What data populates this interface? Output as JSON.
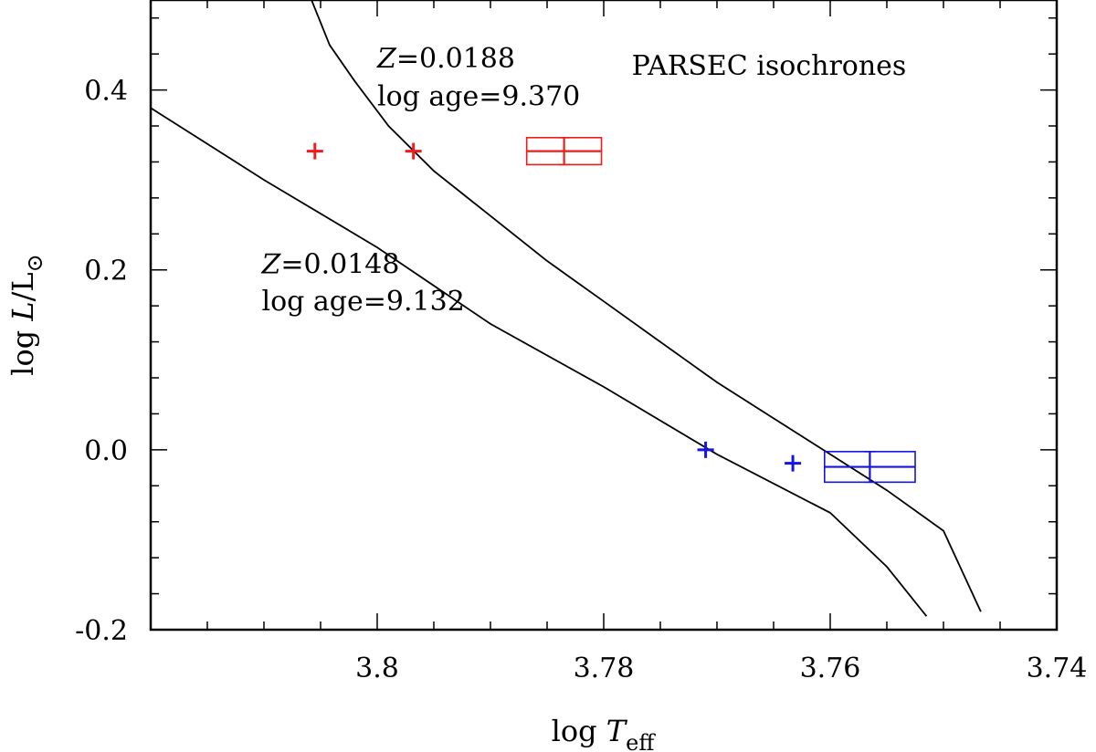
{
  "chart_data": {
    "type": "line",
    "title": "PARSEC isochrones",
    "xlabel": {
      "main": "log ",
      "var": "T",
      "sub": "eff"
    },
    "ylabel": {
      "main": "log ",
      "var": "L",
      "rest": "/L",
      "sub": "⊙"
    },
    "xlim": [
      3.82,
      3.74
    ],
    "ylim": [
      -0.2,
      0.5
    ],
    "x_reversed": true,
    "x_ticks": [
      {
        "value": 3.8,
        "label": "3.8"
      },
      {
        "value": 3.78,
        "label": "3.78"
      },
      {
        "value": 3.76,
        "label": "3.76"
      },
      {
        "value": 3.74,
        "label": "3.74"
      }
    ],
    "x_minor_step": 0.005,
    "y_ticks": [
      {
        "value": 0.4,
        "label": "0.4"
      },
      {
        "value": 0.2,
        "label": "0.2"
      },
      {
        "value": 0.0,
        "label": "0.0"
      },
      {
        "value": -0.2,
        "label": "-0.2"
      }
    ],
    "y_minor_step": 0.04,
    "series": [
      {
        "name": "Z=0.0188 isochrone",
        "color": "#000000",
        "x": [
          3.8058,
          3.8042,
          3.802,
          3.799,
          3.795,
          3.79,
          3.785,
          3.78,
          3.775,
          3.77,
          3.765,
          3.76,
          3.755,
          3.75,
          3.7467
        ],
        "y": [
          0.5,
          0.45,
          0.41,
          0.36,
          0.31,
          0.26,
          0.21,
          0.165,
          0.12,
          0.075,
          0.035,
          -0.005,
          -0.045,
          -0.09,
          -0.18
        ]
      },
      {
        "name": "Z=0.0148 isochrone",
        "color": "#000000",
        "x": [
          3.82,
          3.81,
          3.8,
          3.79,
          3.78,
          3.77,
          3.76,
          3.755,
          3.7515
        ],
        "y": [
          0.38,
          0.3,
          0.225,
          0.14,
          0.07,
          -0.005,
          -0.07,
          -0.13,
          -0.185
        ]
      }
    ],
    "points": [
      {
        "name": "red-plus-1",
        "x": 3.8055,
        "y": 0.332,
        "color": "#ee1c1c"
      },
      {
        "name": "red-plus-2",
        "x": 3.7968,
        "y": 0.332,
        "color": "#ee1c1c"
      },
      {
        "name": "blue-plus-1",
        "x": 3.771,
        "y": 0.0,
        "color": "#1515dd"
      },
      {
        "name": "blue-plus-2",
        "x": 3.7633,
        "y": -0.015,
        "color": "#1515dd"
      }
    ],
    "error_boxes": [
      {
        "name": "red-box",
        "x_center": 3.7835,
        "x_half": 0.0033,
        "y_center": 0.332,
        "y_half": 0.015,
        "color": "#ee1c1c"
      },
      {
        "name": "blue-box",
        "x_center": 3.7565,
        "x_half": 0.004,
        "y_center": -0.019,
        "y_half": 0.017,
        "color": "#1515dd"
      }
    ],
    "annotations": [
      {
        "name": "annot-z-0188",
        "var": "Z",
        "text": "=0.0188",
        "x": 3.8,
        "y": 0.425
      },
      {
        "name": "annot-age-9370",
        "var": "",
        "text": "log age=9.370",
        "x": 3.8,
        "y": 0.383
      },
      {
        "name": "annot-z-0148",
        "var": "Z",
        "text": "=0.0148",
        "x": 3.8102,
        "y": 0.196
      },
      {
        "name": "annot-age-9132",
        "var": "",
        "text": "log age=9.132",
        "x": 3.8102,
        "y": 0.155
      }
    ]
  }
}
